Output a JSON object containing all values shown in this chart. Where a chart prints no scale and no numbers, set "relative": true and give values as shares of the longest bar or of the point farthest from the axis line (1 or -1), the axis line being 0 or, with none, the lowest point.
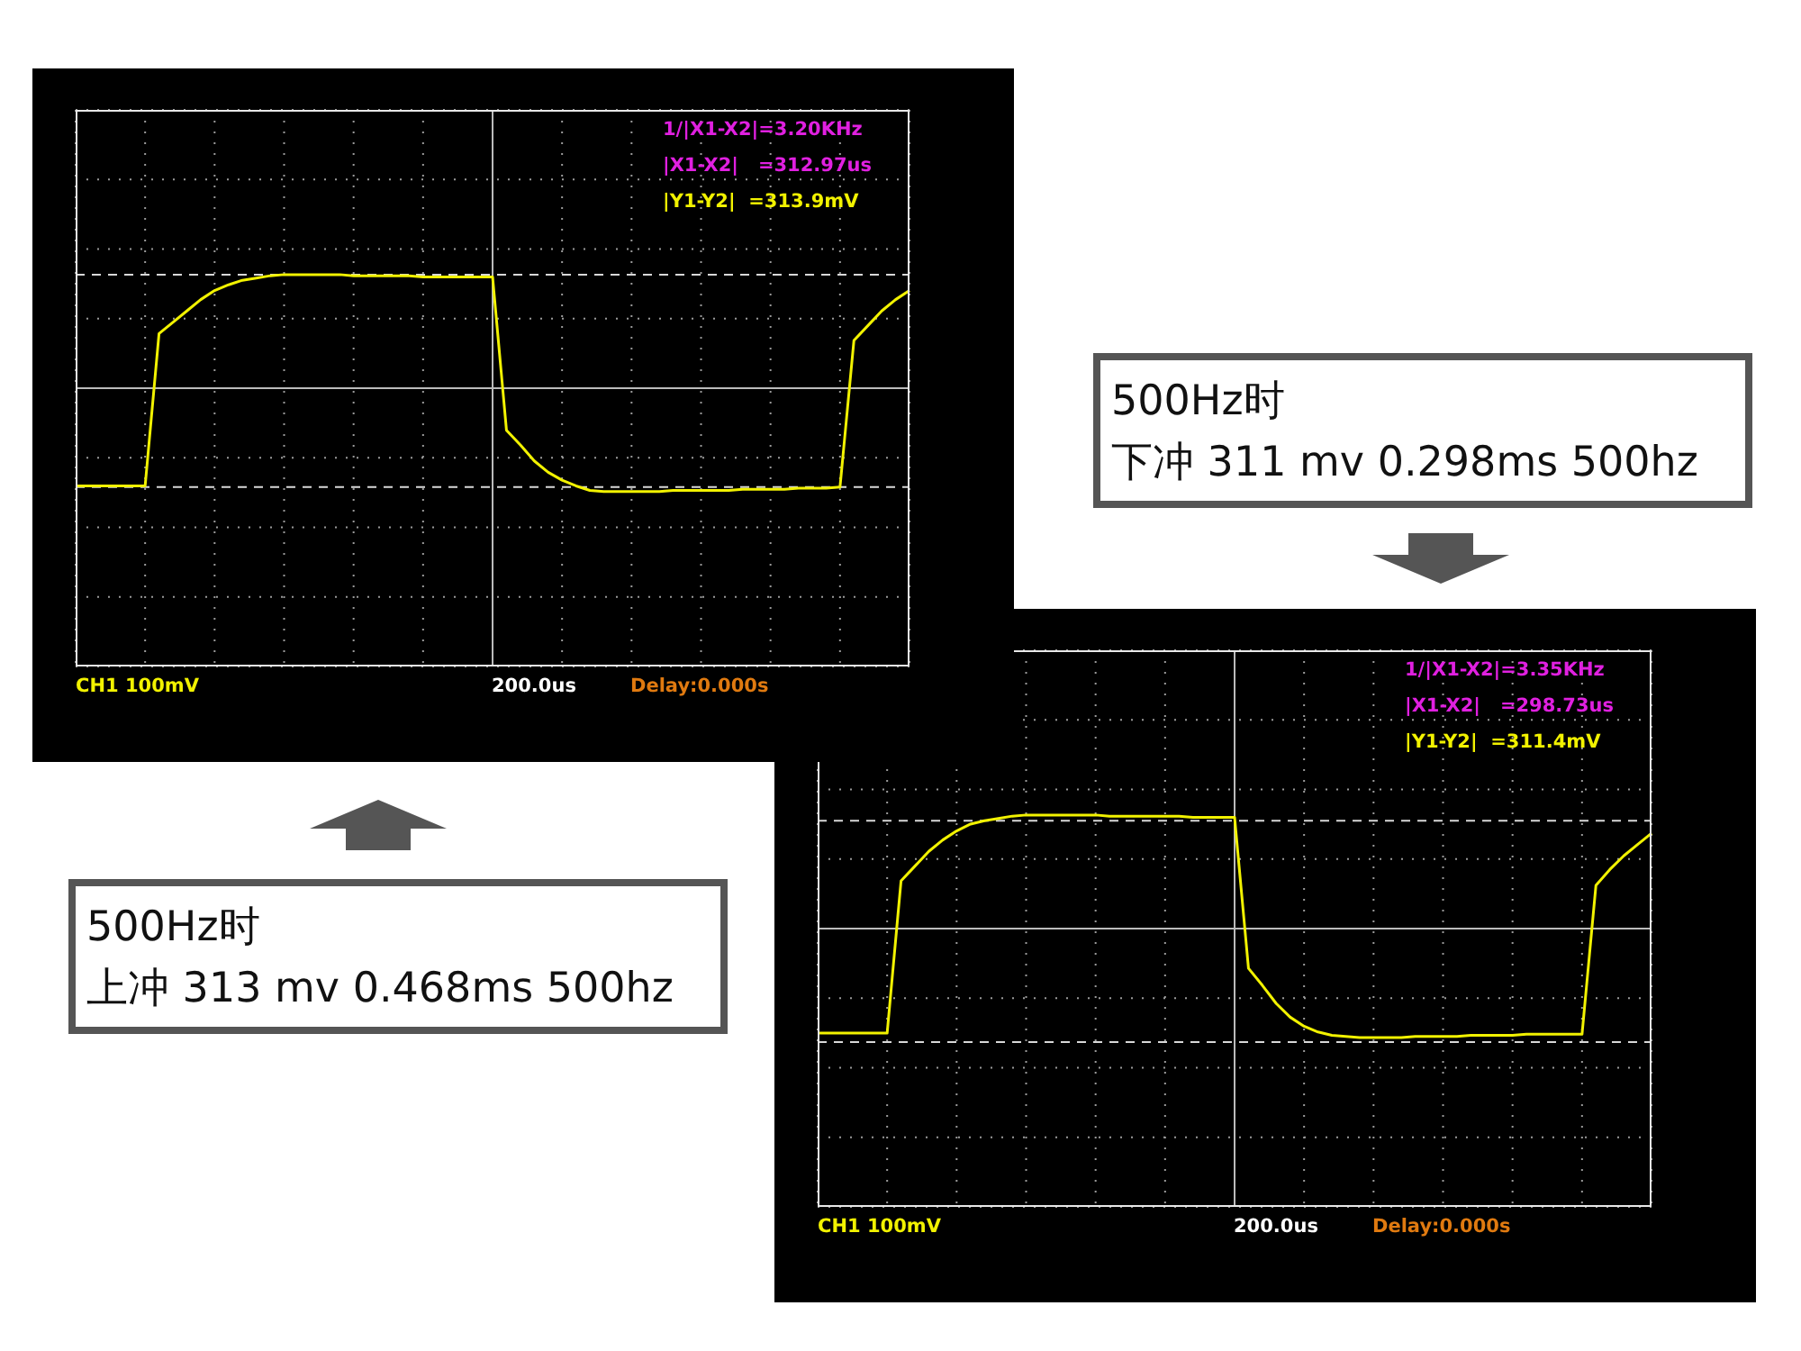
{
  "chart_data": [
    {
      "type": "line",
      "title": "500Hz时",
      "subtitle": "上冲 313 mv 0.468ms 500hz",
      "relative": true,
      "grid": true,
      "categories": [
        null,
        null,
        null,
        null,
        null,
        null,
        null,
        null,
        null,
        null,
        null,
        null,
        null,
        null,
        null,
        null,
        null,
        null,
        null,
        null,
        null,
        null,
        null,
        null,
        null,
        null,
        null,
        null,
        null,
        null,
        null,
        null,
        null,
        null,
        null,
        null,
        null,
        null,
        null,
        null,
        null,
        null,
        null,
        null,
        null,
        null,
        null,
        null,
        null,
        null,
        null,
        null,
        null,
        null,
        null,
        null,
        null,
        null,
        null,
        null,
        null
      ],
      "series": [
        {
          "color": "#f2f200",
          "values": [
            -0.86,
            -0.86,
            -0.86,
            -0.86,
            -0.86,
            -0.86,
            0.48,
            0.58,
            0.68,
            0.78,
            0.86,
            0.91,
            0.95,
            0.97,
            0.99,
            1.0,
            1.0,
            1.0,
            1.0,
            1.0,
            0.99,
            0.99,
            0.99,
            0.99,
            0.99,
            0.98,
            0.98,
            0.98,
            0.98,
            0.98,
            0.98,
            -0.37,
            -0.5,
            -0.64,
            -0.74,
            -0.81,
            -0.86,
            -0.9,
            -0.91,
            -0.91,
            -0.91,
            -0.91,
            -0.91,
            -0.9,
            -0.9,
            -0.9,
            -0.9,
            -0.9,
            -0.89,
            -0.89,
            -0.89,
            -0.89,
            -0.88,
            -0.88,
            -0.88,
            -0.87,
            0.42,
            0.55,
            0.68,
            0.78,
            0.86
          ]
        }
      ],
      "ref_lines": [
        {
          "axis": "y",
          "value": 1.0,
          "color": "#d8d8d8",
          "line_style": "dashed"
        },
        {
          "axis": "y",
          "value": -0.87,
          "color": "#d8d8d8",
          "line_style": "dashed"
        }
      ],
      "annotations": [
        "1/|X1-X2|=3.20KHz",
        "|X1-X2|   =312.97us",
        "|Y1-Y2|  =313.9mV",
        "CH1 100mV",
        "200.0us",
        "Delay:0.000s"
      ]
    },
    {
      "type": "line",
      "title": "500Hz时",
      "subtitle": "下冲 311 mv 0.298ms 500hz",
      "relative": true,
      "grid": true,
      "categories": [
        null,
        null,
        null,
        null,
        null,
        null,
        null,
        null,
        null,
        null,
        null,
        null,
        null,
        null,
        null,
        null,
        null,
        null,
        null,
        null,
        null,
        null,
        null,
        null,
        null,
        null,
        null,
        null,
        null,
        null,
        null,
        null,
        null,
        null,
        null,
        null,
        null,
        null,
        null,
        null,
        null,
        null,
        null,
        null,
        null,
        null,
        null,
        null,
        null,
        null,
        null,
        null,
        null,
        null,
        null,
        null,
        null,
        null,
        null,
        null,
        null
      ],
      "series": [
        {
          "color": "#f2f200",
          "values": [
            -0.92,
            -0.92,
            -0.92,
            -0.92,
            -0.92,
            -0.92,
            0.42,
            0.55,
            0.68,
            0.78,
            0.86,
            0.92,
            0.95,
            0.97,
            0.99,
            1.0,
            1.0,
            1.0,
            1.0,
            1.0,
            1.0,
            0.99,
            0.99,
            0.99,
            0.99,
            0.99,
            0.99,
            0.98,
            0.98,
            0.98,
            0.98,
            -0.35,
            -0.5,
            -0.66,
            -0.78,
            -0.86,
            -0.91,
            -0.94,
            -0.95,
            -0.96,
            -0.96,
            -0.96,
            -0.96,
            -0.95,
            -0.95,
            -0.95,
            -0.95,
            -0.94,
            -0.94,
            -0.94,
            -0.94,
            -0.93,
            -0.93,
            -0.93,
            -0.93,
            -0.93,
            0.38,
            0.52,
            0.64,
            0.74,
            0.84
          ]
        }
      ],
      "ref_lines": [
        {
          "axis": "y",
          "value": 0.95,
          "color": "#d8d8d8",
          "line_style": "dashed"
        },
        {
          "axis": "y",
          "value": -1.0,
          "color": "#d8d8d8",
          "line_style": "dashed"
        }
      ],
      "annotations": [
        "1/|X1-X2|=3.35KHz",
        "|X1-X2|   =298.73us",
        "|Y1-Y2|  =311.4mV",
        "CH1 100mV",
        "200.0us",
        "Delay:0.000s"
      ]
    }
  ]
}
